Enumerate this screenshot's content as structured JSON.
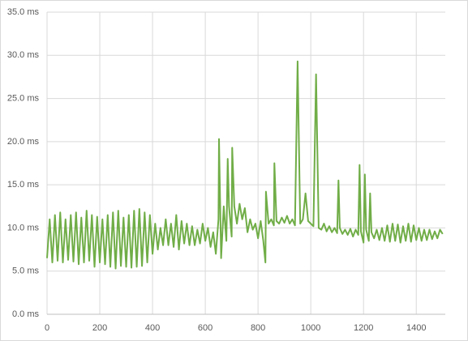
{
  "chart_data": {
    "type": "line",
    "x": [
      0,
      10,
      20,
      30,
      40,
      50,
      60,
      70,
      80,
      90,
      100,
      110,
      120,
      130,
      140,
      150,
      160,
      170,
      180,
      190,
      200,
      210,
      220,
      230,
      240,
      250,
      260,
      270,
      280,
      290,
      300,
      310,
      320,
      330,
      340,
      350,
      360,
      370,
      380,
      390,
      400,
      410,
      420,
      430,
      440,
      450,
      460,
      470,
      480,
      490,
      500,
      510,
      520,
      530,
      540,
      550,
      560,
      570,
      580,
      590,
      600,
      610,
      620,
      630,
      640,
      650,
      652,
      660,
      670,
      680,
      685,
      690,
      700,
      702,
      710,
      720,
      730,
      740,
      750,
      760,
      770,
      780,
      790,
      800,
      810,
      820,
      828,
      830,
      840,
      850,
      860,
      862,
      870,
      880,
      890,
      900,
      910,
      920,
      930,
      940,
      950,
      960,
      970,
      980,
      990,
      1000,
      1010,
      1020,
      1030,
      1040,
      1050,
      1060,
      1070,
      1080,
      1090,
      1100,
      1105,
      1110,
      1120,
      1130,
      1140,
      1150,
      1160,
      1170,
      1180,
      1185,
      1190,
      1200,
      1205,
      1210,
      1220,
      1225,
      1230,
      1240,
      1250,
      1260,
      1270,
      1280,
      1290,
      1300,
      1310,
      1320,
      1330,
      1340,
      1350,
      1360,
      1370,
      1380,
      1390,
      1400,
      1410,
      1420,
      1430,
      1440,
      1450,
      1460,
      1470,
      1480,
      1490,
      1500
    ],
    "series": [
      {
        "color": "#70ad47",
        "values": [
          6.5,
          11,
          6,
          11.5,
          6.2,
          11.8,
          6,
          11,
          6.3,
          11.5,
          6.1,
          11.8,
          5.8,
          11.2,
          6,
          12,
          6.2,
          11.5,
          5.5,
          11.3,
          6,
          11,
          5.8,
          11.5,
          5.5,
          11.8,
          5.3,
          12,
          5.6,
          11.2,
          5.5,
          11.5,
          5.4,
          12,
          5.5,
          12.2,
          5.6,
          11.8,
          6,
          11.5,
          7,
          10.5,
          7.5,
          10,
          8,
          11,
          8,
          10.5,
          7.8,
          11.5,
          7.5,
          10.8,
          8.2,
          10.5,
          8,
          10.2,
          8,
          9.8,
          8.2,
          10.5,
          8.5,
          10,
          7.8,
          9.5,
          7,
          11,
          20.3,
          6.5,
          12.5,
          8.5,
          18,
          12.5,
          9,
          19.3,
          12.5,
          10.5,
          12.8,
          11,
          12.3,
          9.5,
          11,
          9.8,
          10.5,
          8.8,
          10.8,
          8.5,
          6,
          14.2,
          10.5,
          11,
          10.3,
          17.5,
          10.8,
          10.5,
          11.2,
          10.6,
          11.4,
          10.5,
          11,
          10.3,
          29.3,
          10.5,
          11,
          14,
          10.8,
          10.5,
          10.2,
          27.8,
          10,
          9.8,
          10.5,
          9.6,
          10.2,
          9.5,
          10,
          9.4,
          15.5,
          10,
          9.3,
          9.8,
          9.2,
          9.9,
          9,
          9.8,
          9.2,
          17.3,
          9.6,
          8.3,
          16.2,
          9.8,
          8.5,
          14,
          9.5,
          8.8,
          9.8,
          8.6,
          10,
          8.5,
          10.3,
          8.4,
          10.5,
          8.5,
          10.4,
          8.3,
          10.2,
          8.5,
          10.5,
          8.4,
          10.3,
          8.6,
          10,
          8.5,
          9.8,
          8.6,
          9.8,
          8.7,
          9.6,
          8.8,
          9.8,
          9.3
        ]
      }
    ],
    "xlim": [
      0,
      1510
    ],
    "ylim": [
      0,
      35
    ],
    "xticks": [
      0,
      200,
      400,
      600,
      800,
      1000,
      1200,
      1400
    ],
    "yticks": [
      {
        "value": 0,
        "label": "0.0 ms"
      },
      {
        "value": 5,
        "label": "5.0 ms"
      },
      {
        "value": 10,
        "label": "10.0 ms"
      },
      {
        "value": 15,
        "label": "15.0 ms"
      },
      {
        "value": 20,
        "label": "20.0 ms"
      },
      {
        "value": 25,
        "label": "25.0 ms"
      },
      {
        "value": 30,
        "label": "30.0 ms"
      },
      {
        "value": 35,
        "label": "35.0 ms"
      }
    ],
    "grid": true
  }
}
